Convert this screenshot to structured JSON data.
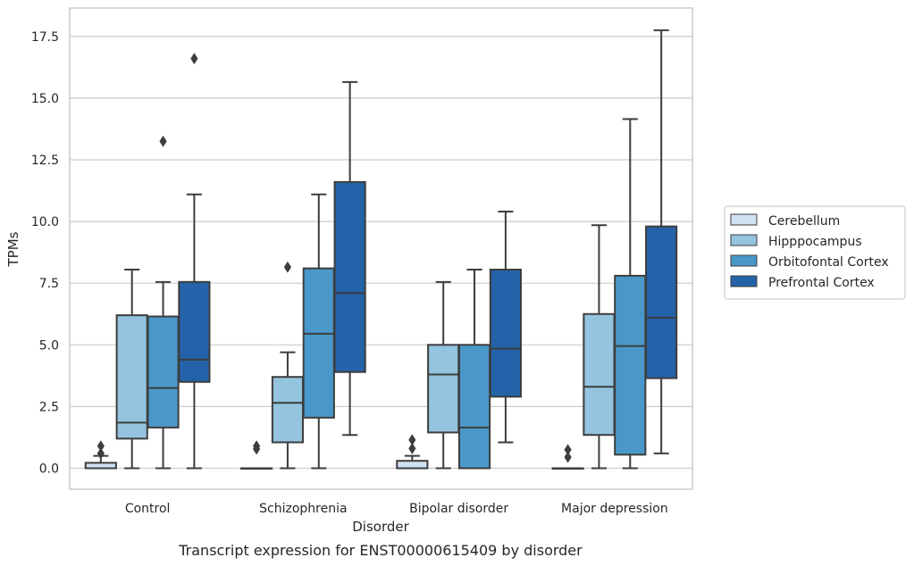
{
  "chart_data": {
    "type": "box",
    "caption": "Transcript expression for ENST00000615409 by disorder",
    "xlabel": "Disorder",
    "ylabel": "TPMs",
    "ylim": [
      -0.85,
      18.65
    ],
    "yticks": [
      "0.0",
      "2.5",
      "5.0",
      "7.5",
      "10.0",
      "12.5",
      "15.0",
      "17.5"
    ],
    "ytick_values": [
      0,
      2.5,
      5,
      7.5,
      10,
      12.5,
      15,
      17.5
    ],
    "grid": true,
    "legend_position": "right",
    "categories": [
      "Control",
      "Schizophrenia",
      "Bipolar disorder",
      "Major depression"
    ],
    "series": [
      {
        "name": "Cerebellum",
        "color": "#d0e1f2",
        "boxes": [
          {
            "whisker_low": 0,
            "q1": 0,
            "median": 0,
            "q3": 0.22,
            "whisker_high": 0.5,
            "outliers": [
              0.6,
              0.9
            ]
          },
          {
            "whisker_low": 0,
            "q1": 0,
            "median": 0,
            "q3": 0,
            "whisker_high": 0,
            "outliers": [
              0.78,
              0.9
            ]
          },
          {
            "whisker_low": 0,
            "q1": 0,
            "median": 0,
            "q3": 0.3,
            "whisker_high": 0.5,
            "outliers": [
              0.8,
              1.15
            ]
          },
          {
            "whisker_low": 0,
            "q1": 0,
            "median": 0,
            "q3": 0,
            "whisker_high": 0,
            "outliers": [
              0.45,
              0.75
            ]
          }
        ]
      },
      {
        "name": "Hipppocampus",
        "color": "#94c4df",
        "boxes": [
          {
            "whisker_low": 0,
            "q1": 1.2,
            "median": 1.85,
            "q3": 6.2,
            "whisker_high": 8.05,
            "outliers": []
          },
          {
            "whisker_low": 0,
            "q1": 1.05,
            "median": 2.65,
            "q3": 3.7,
            "whisker_high": 4.7,
            "outliers": [
              8.15
            ]
          },
          {
            "whisker_low": 0,
            "q1": 1.45,
            "median": 3.8,
            "q3": 5.0,
            "whisker_high": 7.55,
            "outliers": []
          },
          {
            "whisker_low": 0,
            "q1": 1.35,
            "median": 3.3,
            "q3": 6.25,
            "whisker_high": 9.85,
            "outliers": []
          }
        ]
      },
      {
        "name": "Orbitofontal Cortex",
        "color": "#4a98c9",
        "boxes": [
          {
            "whisker_low": 0,
            "q1": 1.65,
            "median": 3.25,
            "q3": 6.15,
            "whisker_high": 7.55,
            "outliers": [
              13.25
            ]
          },
          {
            "whisker_low": 0,
            "q1": 2.05,
            "median": 5.45,
            "q3": 8.1,
            "whisker_high": 11.1,
            "outliers": []
          },
          {
            "whisker_low": 0,
            "q1": 0,
            "median": 1.65,
            "q3": 5.0,
            "whisker_high": 8.05,
            "outliers": []
          },
          {
            "whisker_low": 0,
            "q1": 0.55,
            "median": 4.95,
            "q3": 7.8,
            "whisker_high": 14.15,
            "outliers": []
          }
        ]
      },
      {
        "name": "Prefrontal Cortex",
        "color": "#2462a9",
        "boxes": [
          {
            "whisker_low": 0,
            "q1": 3.5,
            "median": 4.4,
            "q3": 7.55,
            "whisker_high": 11.1,
            "outliers": [
              16.6
            ]
          },
          {
            "whisker_low": 1.35,
            "q1": 3.9,
            "median": 7.1,
            "q3": 11.6,
            "whisker_high": 15.65,
            "outliers": []
          },
          {
            "whisker_low": 1.05,
            "q1": 2.9,
            "median": 4.85,
            "q3": 8.05,
            "whisker_high": 10.4,
            "outliers": []
          },
          {
            "whisker_low": 0.6,
            "q1": 3.65,
            "median": 6.1,
            "q3": 9.8,
            "whisker_high": 17.75,
            "outliers": []
          }
        ]
      }
    ]
  }
}
